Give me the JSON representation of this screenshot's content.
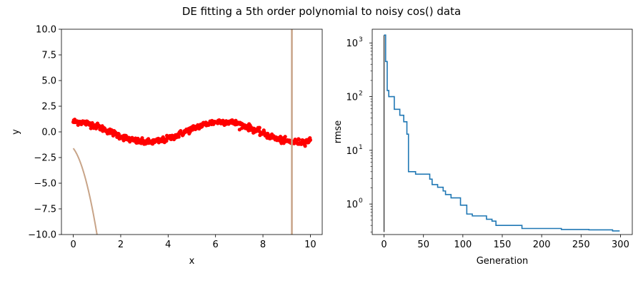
{
  "chart_data": {
    "suptitle": "DE fitting a 5th order polynomial to noisy cos() data",
    "charts": [
      {
        "type": "scatter",
        "xlabel": "x",
        "ylabel": "y",
        "xlim": [
          -0.5,
          10.5
        ],
        "ylim": [
          -10,
          10
        ],
        "xticks": [
          0,
          2,
          4,
          6,
          8,
          10
        ],
        "yticks": [
          -10.0,
          -7.5,
          -5.0,
          -2.5,
          0.0,
          2.5,
          5.0,
          7.5,
          10.0
        ],
        "ytick_labels": [
          "−10.0",
          "−7.5",
          "−5.0",
          "−2.5",
          "0.0",
          "2.5",
          "5.0",
          "7.5",
          "10.0"
        ],
        "series": [
          {
            "kind": "points",
            "color": "#ff0000",
            "model": "cos(x)",
            "x_range": [
              0,
              10
            ],
            "count": 500,
            "noise_sd": 0.15
          },
          {
            "kind": "fit-curve",
            "color": "#c8a488",
            "polynomial_order": 5
          }
        ]
      },
      {
        "type": "line",
        "xlabel": "Generation",
        "ylabel": "rmse",
        "yscale": "log",
        "xlim": [
          -15,
          315
        ],
        "ylim": [
          0.27,
          1800
        ],
        "xticks": [
          0,
          50,
          100,
          150,
          200,
          250,
          300
        ],
        "ytick_exponents": [
          0,
          1,
          2,
          3
        ],
        "series": [
          {
            "color": "#1f77b4",
            "points": [
              [
                0,
                1400
              ],
              [
                2,
                1400
              ],
              [
                2,
                450
              ],
              [
                4,
                450
              ],
              [
                4,
                130
              ],
              [
                6,
                130
              ],
              [
                6,
                100
              ],
              [
                13,
                100
              ],
              [
                13,
                58
              ],
              [
                20,
                58
              ],
              [
                20,
                45
              ],
              [
                25,
                45
              ],
              [
                25,
                34
              ],
              [
                29,
                34
              ],
              [
                29,
                20
              ],
              [
                31,
                20
              ],
              [
                31,
                4.0
              ],
              [
                40,
                4.0
              ],
              [
                40,
                3.6
              ],
              [
                58,
                3.6
              ],
              [
                58,
                2.9
              ],
              [
                61,
                2.9
              ],
              [
                61,
                2.3
              ],
              [
                68,
                2.3
              ],
              [
                68,
                2.05
              ],
              [
                75,
                2.05
              ],
              [
                75,
                1.75
              ],
              [
                78,
                1.75
              ],
              [
                78,
                1.5
              ],
              [
                85,
                1.5
              ],
              [
                85,
                1.3
              ],
              [
                97,
                1.3
              ],
              [
                97,
                0.95
              ],
              [
                105,
                0.95
              ],
              [
                105,
                0.65
              ],
              [
                112,
                0.65
              ],
              [
                112,
                0.6
              ],
              [
                130,
                0.6
              ],
              [
                130,
                0.52
              ],
              [
                137,
                0.52
              ],
              [
                137,
                0.48
              ],
              [
                142,
                0.48
              ],
              [
                142,
                0.4
              ],
              [
                175,
                0.4
              ],
              [
                175,
                0.35
              ],
              [
                225,
                0.35
              ],
              [
                225,
                0.335
              ],
              [
                260,
                0.335
              ],
              [
                260,
                0.33
              ],
              [
                290,
                0.33
              ],
              [
                290,
                0.315
              ],
              [
                299,
                0.315
              ]
            ]
          },
          {
            "color": "#333333",
            "points": [
              [
                0,
                0.3
              ],
              [
                0,
                1400
              ]
            ]
          }
        ]
      }
    ]
  }
}
